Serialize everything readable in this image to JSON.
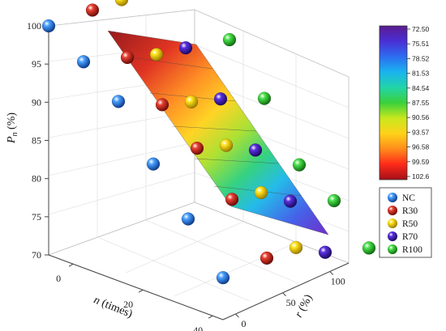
{
  "chart_data": {
    "type": "scatter",
    "subtype": "3d-scatter-with-fitted-surface",
    "title": "",
    "axes": {
      "y": {
        "label_main": "P",
        "label_sub": "n",
        "label_unit": " (%)",
        "ticks": [
          "70",
          "75",
          "80",
          "85",
          "90",
          "95",
          "100"
        ],
        "range": [
          70,
          100
        ]
      },
      "x": {
        "label_main": "n",
        "label_unit": " (times)",
        "ticks": [
          "0",
          "20",
          "40"
        ],
        "range": [
          0,
          50
        ]
      },
      "z": {
        "label_main": "r",
        "label_unit": " (%)",
        "ticks": [
          "0",
          "50",
          "100"
        ],
        "range": [
          0,
          100
        ]
      }
    },
    "colorbar": {
      "ticks": [
        "72.50",
        "75.51",
        "78.52",
        "81.53",
        "84.54",
        "87.55",
        "90.56",
        "93.57",
        "96.58",
        "99.59",
        "102.6"
      ],
      "range": [
        72.5,
        102.6
      ],
      "colors": [
        "#5b1b8f",
        "#4a2fd6",
        "#2d6df0",
        "#1ab3f0",
        "#22d4a8",
        "#3bd13b",
        "#c8e81e",
        "#ffd21a",
        "#ff8c1a",
        "#ff2a1a",
        "#b3121a"
      ]
    },
    "legend": {
      "placement": "right",
      "entries": [
        {
          "name": "NC",
          "color": "#1f6fe0"
        },
        {
          "name": "R30",
          "color": "#c8201a"
        },
        {
          "name": "R50",
          "color": "#f0d000"
        },
        {
          "name": "R70",
          "color": "#3a18b0"
        },
        {
          "name": "R100",
          "color": "#2ec82e"
        }
      ]
    },
    "series": [
      {
        "name": "NC",
        "r": 0,
        "points": [
          [
            0,
            100
          ],
          [
            10,
            97
          ],
          [
            20,
            93.5
          ],
          [
            30,
            87
          ],
          [
            40,
            81.5
          ],
          [
            50,
            75.5
          ]
        ]
      },
      {
        "name": "R30",
        "r": 30,
        "points": [
          [
            0,
            100
          ],
          [
            10,
            95.5
          ],
          [
            20,
            91
          ],
          [
            30,
            87
          ],
          [
            40,
            82
          ],
          [
            50,
            76
          ]
        ]
      },
      {
        "name": "R50",
        "r": 50,
        "points": [
          [
            0,
            100
          ],
          [
            10,
            94.5
          ],
          [
            20,
            90
          ],
          [
            30,
            86
          ],
          [
            40,
            81.5
          ],
          [
            50,
            76
          ]
        ]
      },
      {
        "name": "R70",
        "r": 70,
        "points": [
          [
            0,
            100
          ],
          [
            10,
            94
          ],
          [
            20,
            89
          ],
          [
            30,
            84
          ],
          [
            40,
            79
          ],
          [
            50,
            74
          ]
        ]
      },
      {
        "name": "R100",
        "r": 100,
        "points": [
          [
            0,
            100
          ],
          [
            10,
            93
          ],
          [
            20,
            87
          ],
          [
            30,
            80
          ],
          [
            40,
            77
          ],
          [
            50,
            72.5
          ]
        ]
      }
    ],
    "grid": true
  }
}
